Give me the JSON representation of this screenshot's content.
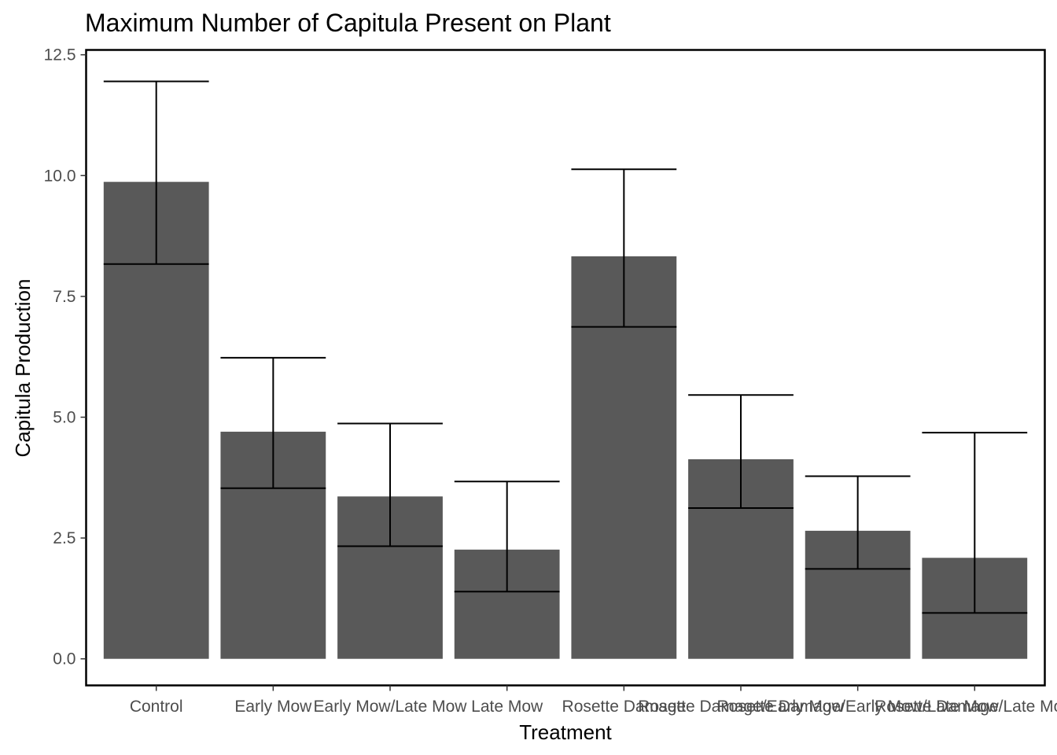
{
  "chart_data": {
    "type": "bar",
    "title": "Maximum Number of Capitula Present on Plant",
    "xlabel": "Treatment",
    "ylabel": "Capitula Production",
    "ylim": [
      -0.55,
      12.6
    ],
    "yticks": [
      "0.0",
      "2.5",
      "5.0",
      "7.5",
      "10.0",
      "12.5"
    ],
    "ytick_values": [
      0,
      2.5,
      5,
      7.5,
      10,
      12.5
    ],
    "grid": false,
    "legend": "none",
    "bar_color": "#595959",
    "categories": [
      "Control",
      "Early Mow",
      "Early Mow/Late Mow",
      "Late Mow",
      "Rosette Damage",
      "Rosette Damage/Early Mow",
      "Rosette Damage/Early Mow/Late Mow",
      "Rosette Damage/Late Mow"
    ],
    "values": [
      9.87,
      4.7,
      3.36,
      2.26,
      8.33,
      4.13,
      2.65,
      2.09
    ],
    "error_low": [
      8.17,
      3.53,
      2.33,
      1.39,
      6.87,
      3.12,
      1.86,
      0.95
    ],
    "error_high": [
      11.95,
      6.23,
      4.87,
      3.67,
      10.13,
      5.46,
      3.78,
      4.68
    ]
  }
}
